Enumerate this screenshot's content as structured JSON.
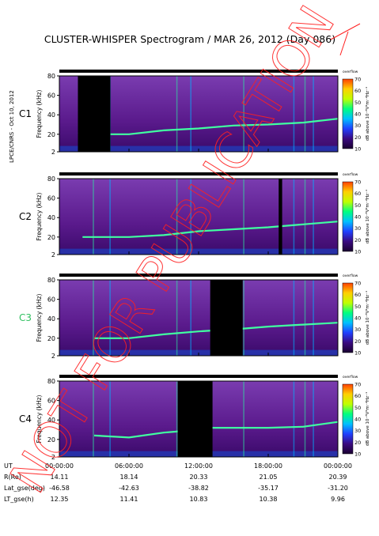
{
  "title": "CLUSTER-WHISPER Spectrogram / MAR 26, 2012 (Day 086)",
  "side_label": "LPCE/CNRS - Oct 10, 2012",
  "watermark": "NOT FOR PUBLICATION",
  "colors": {
    "background": "#5a1a8c",
    "colorbar": [
      "#1a0030",
      "#3a0a80",
      "#2040ff",
      "#00c0ff",
      "#00ff80",
      "#c0ff00",
      "#ffd000",
      "#ff4000"
    ]
  },
  "chart_data": {
    "type": "heatmap",
    "x_ticks": [
      "00:00:00",
      "06:00:00",
      "12:00:00",
      "18:00:00",
      "00:00:00"
    ],
    "xlim_hours": [
      0,
      24
    ],
    "ylim_khz": [
      2,
      80
    ],
    "y_ticks": [
      "80",
      "60",
      "40",
      "20",
      "2"
    ],
    "ylabel": "Frequency (kHz)",
    "colorbar": {
      "label": "dB above 10⁻⁸V²m⁻²Hz⁻¹",
      "ticks": [
        "70",
        "60",
        "50",
        "40",
        "30",
        "20",
        "10"
      ],
      "range": [
        10,
        70
      ],
      "top_label": "overflow"
    },
    "panels": [
      {
        "name": "C1",
        "label_color": "#000000",
        "data_gaps_hours": [
          [
            1.6,
            4.4
          ]
        ],
        "plasma_line_khz": [
          [
            1.6,
            22
          ],
          [
            3,
            20
          ],
          [
            6,
            20
          ],
          [
            9,
            24
          ],
          [
            12,
            26
          ],
          [
            15,
            29
          ],
          [
            18,
            30
          ],
          [
            21,
            32
          ],
          [
            24,
            36
          ]
        ]
      },
      {
        "name": "C2",
        "label_color": "#000000",
        "data_gaps_hours": [
          [
            18.9,
            19.2
          ]
        ],
        "plasma_line_khz": [
          [
            2,
            20
          ],
          [
            6,
            20
          ],
          [
            9,
            22
          ],
          [
            12,
            26
          ],
          [
            15,
            28
          ],
          [
            18,
            30
          ],
          [
            21,
            33
          ],
          [
            24,
            36
          ]
        ]
      },
      {
        "name": "C3",
        "label_color": "#30c060",
        "data_gaps_hours": [
          [
            13,
            15.8
          ]
        ],
        "plasma_line_khz": [
          [
            3,
            20
          ],
          [
            6,
            20
          ],
          [
            9,
            24
          ],
          [
            12,
            27
          ],
          [
            16,
            30
          ],
          [
            18,
            32
          ],
          [
            21,
            34
          ],
          [
            24,
            36
          ]
        ]
      },
      {
        "name": "C4",
        "label_color": "#000000",
        "data_gaps_hours": [
          [
            10.2,
            13.2
          ]
        ],
        "plasma_line_khz": [
          [
            3,
            24
          ],
          [
            6,
            22
          ],
          [
            9,
            27
          ],
          [
            10,
            28
          ],
          [
            13.2,
            32
          ],
          [
            18,
            32
          ],
          [
            21,
            33
          ],
          [
            24,
            38
          ]
        ]
      }
    ],
    "ephemeris": {
      "row_labels": [
        "UT",
        "R(Re)",
        "Lat_gse(deg)",
        "LT_gse(h)"
      ],
      "columns": [
        [
          "00:00:00",
          "14.11",
          "-46.58",
          "12.35"
        ],
        [
          "06:00:00",
          "18.14",
          "-42.63",
          "11.41"
        ],
        [
          "12:00:00",
          "20.33",
          "-38.82",
          "10.83"
        ],
        [
          "18:00:00",
          "21.05",
          "-35.17",
          "10.38"
        ],
        [
          "00:00:00",
          "20.39",
          "-31.20",
          "9.96"
        ]
      ]
    }
  }
}
